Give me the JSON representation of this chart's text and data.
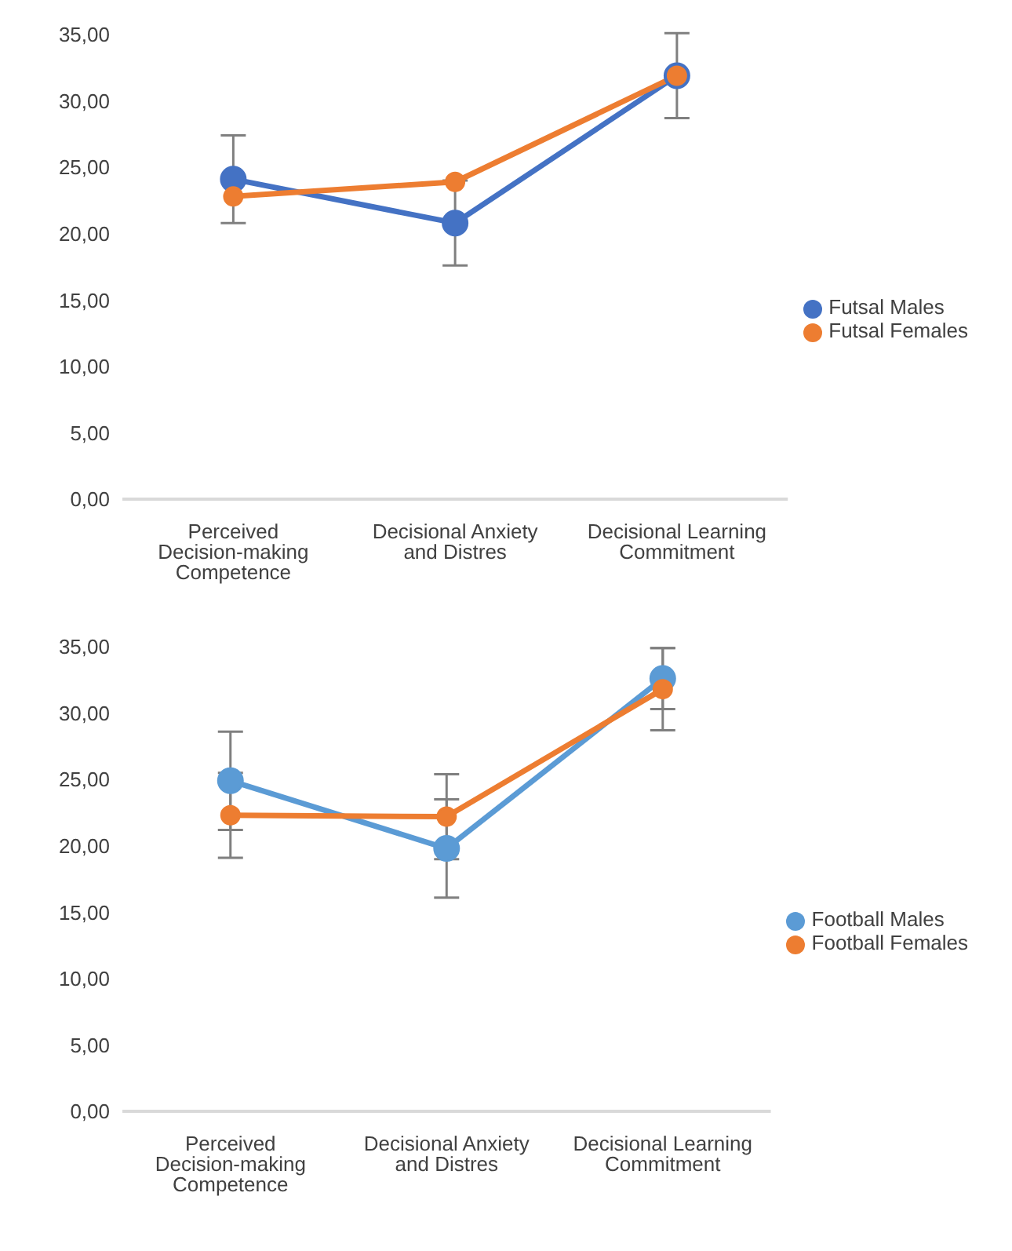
{
  "chart_data": [
    {
      "type": "line",
      "categories": [
        "Perceived Decision-making Competence",
        "Decisional Anxiety and Distres",
        "Decisional Learning Commitment"
      ],
      "series": [
        {
          "name": "Futsal Males",
          "color": "#4472c4",
          "values": [
            24.1,
            20.8,
            31.9
          ],
          "errors": [
            3.3,
            3.2,
            3.2
          ]
        },
        {
          "name": "Futsal Females",
          "color": "#ed7d31",
          "values": [
            22.8,
            23.9,
            31.9
          ]
        }
      ],
      "ylim": [
        0,
        35
      ],
      "yticks": [
        {
          "value": 0,
          "label": "0,00"
        },
        {
          "value": 5,
          "label": "5,00"
        },
        {
          "value": 10,
          "label": "10,00"
        },
        {
          "value": 15,
          "label": "15,00"
        },
        {
          "value": 20,
          "label": "20,00"
        },
        {
          "value": 25,
          "label": "25,00"
        },
        {
          "value": 30,
          "label": "30,00"
        },
        {
          "value": 35,
          "label": "35,00"
        }
      ],
      "grid": false,
      "legend": "right",
      "marker": "circle"
    },
    {
      "type": "line",
      "categories": [
        "Perceived Decision-making Competence",
        "Decisional Anxiety and Distres",
        "Decisional Learning Commitment"
      ],
      "series": [
        {
          "name": "Football Males",
          "color": "#5b9bd5",
          "values": [
            24.9,
            19.8,
            32.6
          ],
          "errors": [
            3.7,
            3.7,
            2.3
          ]
        },
        {
          "name": "Football Females",
          "color": "#ed7d31",
          "values": [
            22.3,
            22.2,
            31.8
          ],
          "errors": [
            3.2,
            3.2,
            3.1
          ]
        }
      ],
      "ylim": [
        0,
        35
      ],
      "yticks": [
        {
          "value": 0,
          "label": "0,00"
        },
        {
          "value": 5,
          "label": "5,00"
        },
        {
          "value": 10,
          "label": "10,00"
        },
        {
          "value": 15,
          "label": "15,00"
        },
        {
          "value": 20,
          "label": "20,00"
        },
        {
          "value": 25,
          "label": "25,00"
        },
        {
          "value": 30,
          "label": "30,00"
        },
        {
          "value": 35,
          "label": "35,00"
        }
      ],
      "grid": false,
      "legend": "right",
      "marker": "circle"
    }
  ]
}
